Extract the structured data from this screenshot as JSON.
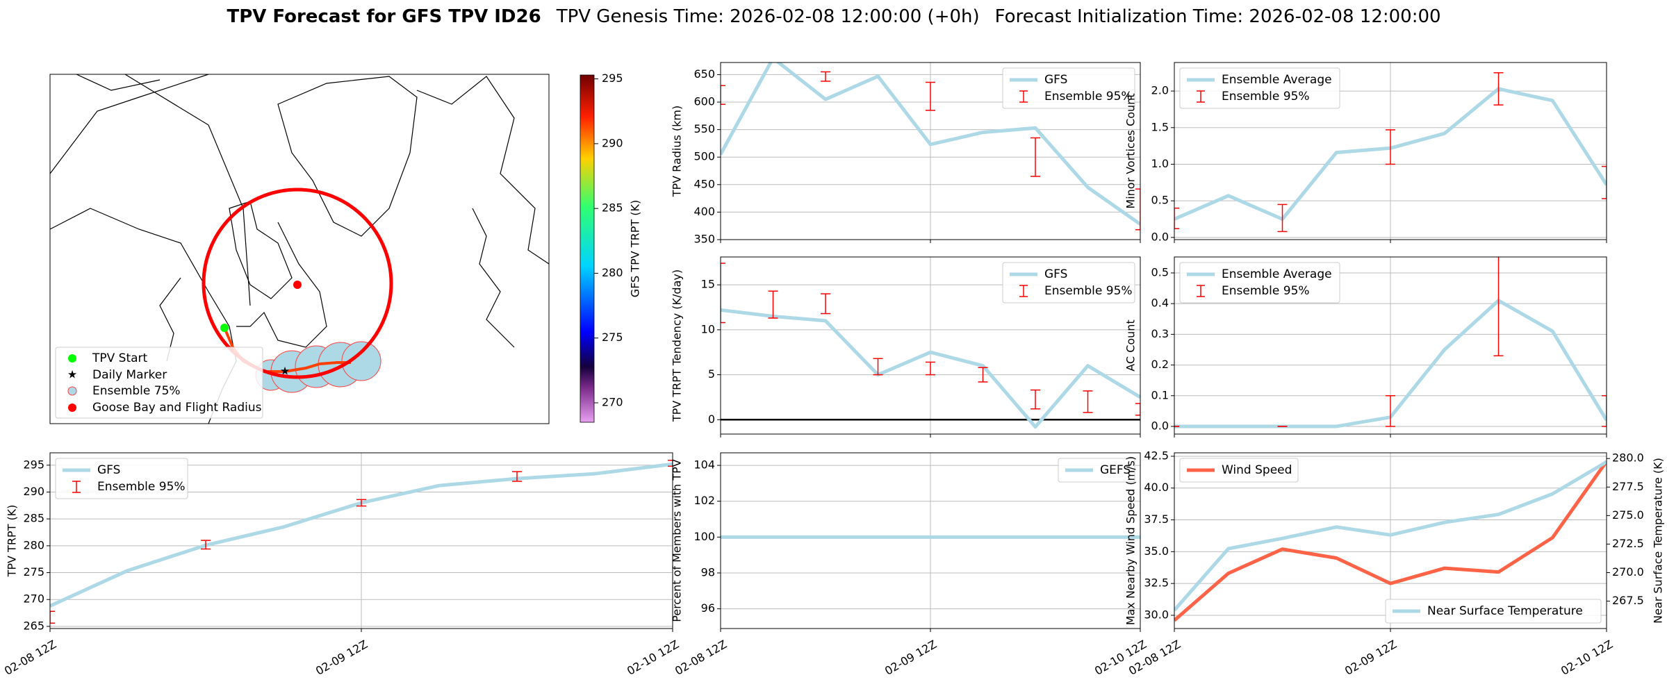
{
  "figure_title": [
    "TPV Forecast for GFS TPV ID26",
    "TPV Genesis Time: 2026-02-08 12:00:00 (+0h)",
    "Forecast Initialization Time: 2026-02-08 12:00:00"
  ],
  "chart_data": [
    {
      "type": "map",
      "legend": [
        "TPV Start",
        "Daily Marker",
        "Ensemble 75%",
        "Goose Bay and Flight Radius"
      ],
      "colorbar": {
        "label": "GFS TPV TRPT (K)",
        "clim": [
          268.5,
          295.3
        ],
        "ticks": [
          270,
          275,
          280,
          285,
          290,
          295
        ]
      }
    },
    {
      "type": "line",
      "ylabel": "TPV Radius (km)",
      "ylim": [
        350,
        672
      ],
      "yticks": [
        350,
        400,
        450,
        500,
        550,
        600,
        650
      ],
      "grid": true,
      "legend": "upper right",
      "series": [
        {
          "name": "GFS",
          "color": "#add8e6",
          "values": [
            505,
            680,
            605,
            647,
            523,
            545,
            553,
            445,
            378
          ]
        },
        {
          "name": "Ensemble 95%",
          "color": "#ff0000",
          "low": [
            596,
            null,
            638,
            null,
            585,
            null,
            465,
            null,
            368
          ],
          "high": [
            630,
            null,
            655,
            null,
            636,
            null,
            535,
            null,
            442
          ]
        }
      ]
    },
    {
      "type": "line",
      "ylabel": "TPV TRPT Tendency (K/day)",
      "ylim": [
        -1.6,
        18.1
      ],
      "yticks": [
        0,
        5,
        10,
        15
      ],
      "grid": true,
      "zeroline": true,
      "legend": "upper right",
      "series": [
        {
          "name": "GFS",
          "color": "#add8e6",
          "values": [
            12.2,
            11.5,
            11.0,
            5.0,
            7.5,
            6.0,
            -0.8,
            6.0,
            2.5
          ]
        },
        {
          "name": "Ensemble 95%",
          "color": "#ff0000",
          "low": [
            10.8,
            11.3,
            11.8,
            5.0,
            5.0,
            4.2,
            1.2,
            0.8,
            0.5
          ],
          "high": [
            17.4,
            14.3,
            14.0,
            6.8,
            6.4,
            5.8,
            3.3,
            3.2,
            1.8
          ]
        }
      ]
    },
    {
      "type": "line",
      "ylabel": "Percent of Members with TPV",
      "ylim": [
        94.9,
        104.7
      ],
      "yticks": [
        96,
        98,
        100,
        102,
        104
      ],
      "grid": true,
      "legend": "upper right",
      "categories": [
        "02-08 12Z",
        null,
        null,
        null,
        "02-09 12Z",
        null,
        null,
        null,
        "02-10 12Z"
      ],
      "series": [
        {
          "name": "GEFS",
          "color": "#add8e6",
          "values": [
            100,
            100,
            100,
            100,
            100,
            100,
            100,
            100,
            100
          ]
        }
      ]
    },
    {
      "type": "line",
      "ylabel": "Minor Vortices Count",
      "ylim": [
        -0.03,
        2.39
      ],
      "yticks": [
        {
          "value": 0,
          "label": "0.0"
        },
        0.5,
        {
          "value": 1,
          "label": "1.0"
        },
        1.5,
        {
          "value": 2,
          "label": "2.0"
        }
      ],
      "grid": true,
      "legend": "upper left",
      "series": [
        {
          "name": "Ensemble Average",
          "color": "#add8e6",
          "values": [
            0.25,
            0.57,
            0.25,
            1.16,
            1.22,
            1.42,
            2.03,
            1.87,
            0.72
          ]
        },
        {
          "name": "Ensemble 95%",
          "color": "#ff0000",
          "low": [
            0.12,
            null,
            0.08,
            null,
            1.0,
            null,
            1.81,
            null,
            0.53
          ],
          "high": [
            0.4,
            null,
            0.45,
            null,
            1.47,
            null,
            2.25,
            null,
            0.97
          ]
        }
      ]
    },
    {
      "type": "line",
      "ylabel": "AC Count",
      "ylim": [
        -0.025,
        0.552
      ],
      "yticks": [
        {
          "value": 0,
          "label": "0.0"
        },
        0.1,
        0.2,
        0.3,
        0.4,
        0.5
      ],
      "grid": true,
      "legend": "upper left",
      "series": [
        {
          "name": "Ensemble Average",
          "color": "#add8e6",
          "values": [
            0,
            0,
            0,
            0,
            0.03,
            0.25,
            0.41,
            0.31,
            0.02
          ]
        },
        {
          "name": "Ensemble 95%",
          "color": "#ff0000",
          "low": [
            0,
            null,
            0,
            null,
            0,
            null,
            0.23,
            null,
            0
          ],
          "high": [
            0,
            null,
            0,
            null,
            0.1,
            null,
            0.56,
            null,
            0.1
          ]
        }
      ]
    },
    {
      "type": "line",
      "ylabel": "Max Nearby Wind Speed (m/s)",
      "y_color": "#ff6347",
      "ylim": [
        28.96,
        42.77
      ],
      "yticks": [
        {
          "value": 30,
          "label": "30.0"
        },
        32.5,
        {
          "value": 35,
          "label": "35.0"
        },
        37.5,
        {
          "value": 40,
          "label": "40.0"
        },
        42.5
      ],
      "grid": true,
      "y2label": "Near Surface Temperature (K)",
      "y2_color": "#4169e1",
      "y2lim": [
        265.1,
        280.5
      ],
      "y2ticks": [
        267.5,
        {
          "value": 270,
          "label": "270.0"
        },
        272.5,
        {
          "value": 275,
          "label": "275.0"
        },
        277.5,
        {
          "value": 280,
          "label": "280.0"
        }
      ],
      "categories": [
        "02-08 12Z",
        null,
        null,
        null,
        "02-09 12Z",
        null,
        null,
        null,
        "02-10 12Z"
      ],
      "series": [
        {
          "name": "Wind Speed",
          "color": "#ff6347",
          "legend": "upper left",
          "values": [
            29.6,
            33.3,
            35.2,
            34.5,
            32.5,
            33.7,
            33.4,
            36.1,
            42.1
          ]
        },
        {
          "name": "Near Surface Temperature",
          "color": "#add8e6",
          "axis": "y2",
          "legend": "lower right",
          "values": [
            266.7,
            272.1,
            273.0,
            274.0,
            273.3,
            274.4,
            275.1,
            276.9,
            279.7
          ]
        }
      ]
    },
    {
      "type": "line",
      "ylabel": "TPV TRPT (K)",
      "ylim": [
        264.6,
        297.3
      ],
      "yticks": [
        265,
        270,
        275,
        280,
        285,
        290,
        295
      ],
      "grid": true,
      "legend": "upper left",
      "categories": [
        "02-08 12Z",
        null,
        null,
        null,
        "02-09 12Z",
        null,
        null,
        null,
        "02-10 12Z"
      ],
      "series": [
        {
          "name": "GFS",
          "color": "#add8e6",
          "values": [
            268.8,
            275.4,
            280.1,
            283.5,
            288.0,
            291.2,
            292.5,
            293.4,
            295.2
          ]
        },
        {
          "name": "Ensemble 95%",
          "color": "#ff0000",
          "low": [
            265.6,
            null,
            279.4,
            null,
            287.4,
            null,
            292.0,
            null,
            294.8
          ],
          "high": [
            267.8,
            null,
            281.0,
            null,
            288.6,
            null,
            293.8,
            null,
            295.9
          ]
        }
      ]
    }
  ]
}
